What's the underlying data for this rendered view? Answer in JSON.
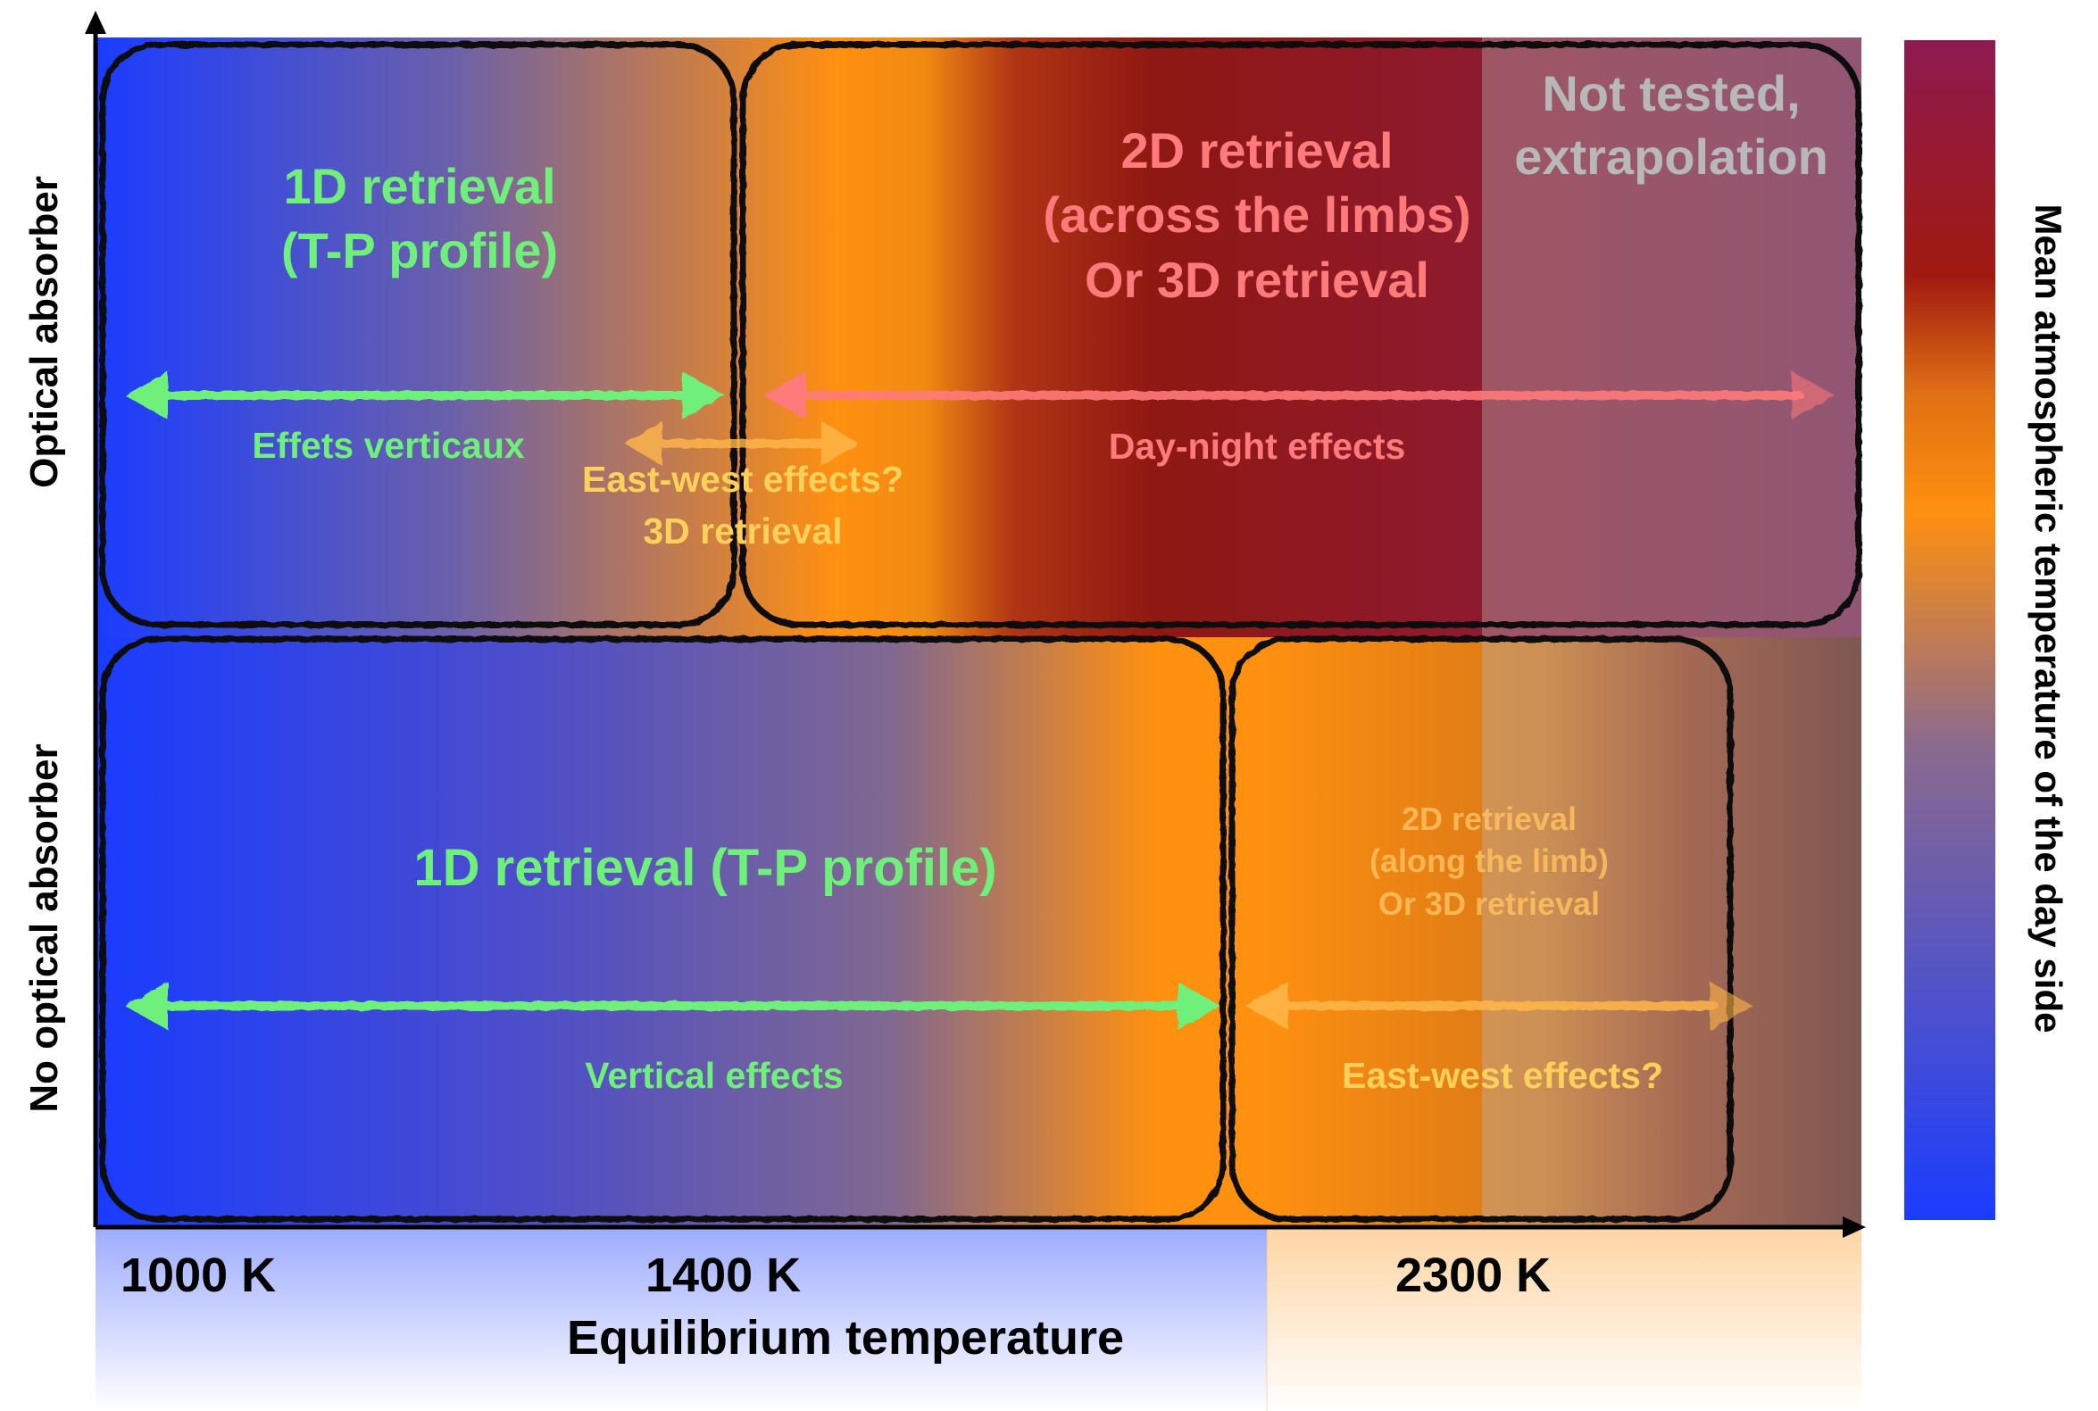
{
  "axes": {
    "x_label": "Equilibrium temperature",
    "x_ticks": [
      "1000 K",
      "1400 K",
      "2300 K"
    ],
    "y_top_label": "Optical absorber",
    "y_bottom_label": "No optical absorber"
  },
  "colorbar": {
    "label": "Mean atmospheric temperature of the day side",
    "colors": [
      "#1a3cff",
      "#7a5a9a",
      "#ff9010",
      "#a01a10",
      "#8e1a50"
    ]
  },
  "regions": {
    "top_left": {
      "title_line1": "1D retrieval",
      "title_line2": "(T-P profile)",
      "effect": "Effets verticaux"
    },
    "top_middle": {
      "effect_line1": "East-west effects?",
      "effect_line2": "3D retrieval"
    },
    "top_right": {
      "title_line1": "2D retrieval",
      "title_line2": "(across the limbs)",
      "title_line3": "Or 3D retrieval",
      "effect": "Day-night effects"
    },
    "not_tested": {
      "line1": "Not tested,",
      "line2": "extrapolation"
    },
    "bottom_left": {
      "title": "1D retrieval (T-P profile)",
      "effect": "Vertical effects"
    },
    "bottom_right": {
      "title_line1": "2D retrieval",
      "title_line2": "(along the limb)",
      "title_line3": "Or 3D retrieval",
      "effect": "East-west effects?"
    }
  },
  "palette": {
    "green": "#6ef07a",
    "pink": "#ff7a7a",
    "yellow": "#ffd05a",
    "grey": "#b8b8b8"
  }
}
